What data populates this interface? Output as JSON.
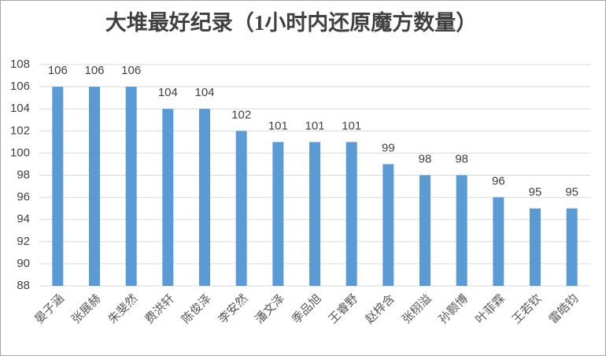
{
  "chart_data": {
    "type": "bar",
    "title": "大堆最好纪录（1小时内还原魔方数量）",
    "categories": [
      "晏子涵",
      "张展赫",
      "朱斐然",
      "费洪轩",
      "陈俊泽",
      "李安然",
      "潘文泽",
      "季品旭",
      "王睿野",
      "赵梓含",
      "张栩溢",
      "孙颢博",
      "叶菲霖",
      "王若钦",
      "雷皓钧"
    ],
    "values": [
      106,
      106,
      106,
      104,
      104,
      102,
      101,
      101,
      101,
      99,
      98,
      98,
      96,
      95,
      95
    ],
    "color": "#5b9bd5",
    "ylim": [
      88,
      108
    ],
    "yticks": [
      88,
      90,
      92,
      94,
      96,
      98,
      100,
      102,
      104,
      106,
      108
    ],
    "grid": true
  }
}
